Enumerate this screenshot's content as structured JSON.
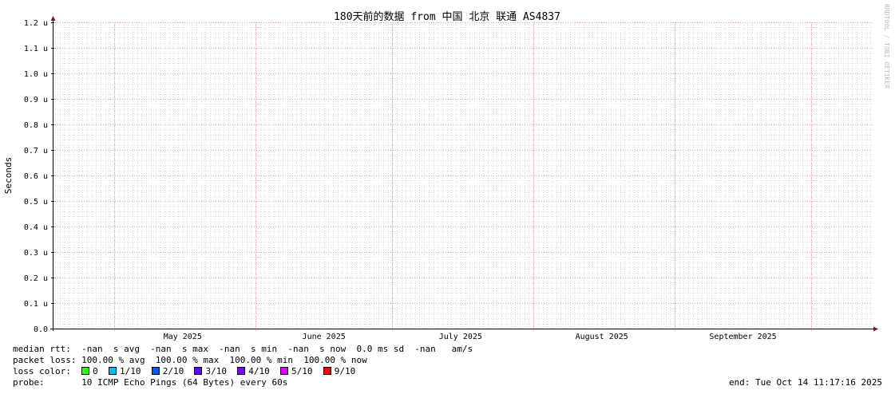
{
  "chart_data": {
    "type": "line",
    "title": "180天前的数据 from 中国 北京 联通 AS4837",
    "ylabel": "Seconds",
    "xlabel": "",
    "ylim": [
      0,
      1.2
    ],
    "yticks": [
      "0.0",
      "0.1 u",
      "0.2 u",
      "0.3 u",
      "0.4 u",
      "0.5 u",
      "0.6 u",
      "0.7 u",
      "0.8 u",
      "0.9 u",
      "1.0 u",
      "1.1 u",
      "1.2 u"
    ],
    "xlim": [
      "2025-04-17T11:17:16",
      "2025-10-14T11:17:16"
    ],
    "month_starts": [
      "2025-05-01",
      "2025-06-01",
      "2025-07-01",
      "2025-08-01",
      "2025-09-01",
      "2025-10-01"
    ],
    "xtick_labels": [
      {
        "label": "May 2025",
        "at": "2025-05-16"
      },
      {
        "label": "June 2025",
        "at": "2025-06-16"
      },
      {
        "label": "July 2025",
        "at": "2025-07-16"
      },
      {
        "label": "August 2025",
        "at": "2025-08-16"
      },
      {
        "label": "September 2025",
        "at": "2025-09-16"
      }
    ],
    "grid": true,
    "series": [],
    "watermark": "RRDTOOL / TOBI OETIKER"
  },
  "legend": {
    "median_rtt": "median rtt:  -nan  s avg  -nan  s max  -nan  s min  -nan  s now  0.0 ms sd  -nan   am/s",
    "packet_loss": "packet loss: 100.00 % avg  100.00 % max  100.00 % min  100.00 % now",
    "loss_color_label": "loss color:",
    "loss_colors": [
      {
        "label": "0",
        "color": "#26ff00"
      },
      {
        "label": "1/10",
        "color": "#00b8ff"
      },
      {
        "label": "2/10",
        "color": "#0059ff"
      },
      {
        "label": "3/10",
        "color": "#5e00ff"
      },
      {
        "label": "4/10",
        "color": "#7e00ff"
      },
      {
        "label": "5/10",
        "color": "#dd00ff"
      },
      {
        "label": "9/10",
        "color": "#ff0000"
      }
    ],
    "probe": "probe:       10 ICMP Echo Pings (64 Bytes) every 60s",
    "end": "end: Tue Oct 14 11:17:16 2025"
  }
}
